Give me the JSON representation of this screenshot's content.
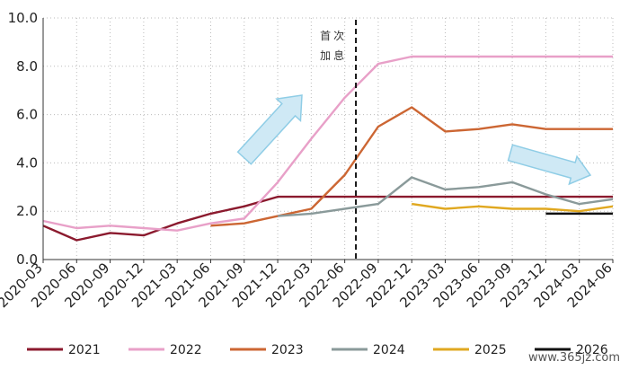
{
  "chart_data": {
    "type": "line",
    "categories": [
      "2020-03",
      "2020-06",
      "2020-09",
      "2020-12",
      "2021-03",
      "2021-06",
      "2021-09",
      "2021-12",
      "2022-03",
      "2022-06",
      "2022-09",
      "2022-12",
      "2023-03",
      "2023-06",
      "2023-09",
      "2023-12",
      "2024-03",
      "2024-06"
    ],
    "ylim": [
      0,
      10
    ],
    "yticks": [
      "0.0",
      "2.0",
      "4.0",
      "6.0",
      "8.0",
      "10.0"
    ],
    "grid": true,
    "legend_position": "bottom",
    "annotation": {
      "line1": "首次",
      "line2": "加息",
      "at": "2022-07"
    },
    "series": [
      {
        "name": "2021",
        "color": "#8B1A2E",
        "values": [
          1.4,
          0.8,
          1.1,
          1.0,
          1.5,
          1.9,
          2.2,
          2.6,
          2.6,
          2.6,
          2.6,
          2.6,
          2.6,
          2.6,
          2.6,
          2.6,
          2.6,
          2.6
        ]
      },
      {
        "name": "2022",
        "color": "#E8A0C8",
        "values": [
          1.6,
          1.3,
          1.4,
          1.3,
          1.2,
          1.5,
          1.7,
          3.2,
          5.0,
          6.7,
          8.1,
          8.4,
          8.4,
          8.4,
          8.4,
          8.4,
          8.4,
          8.4
        ]
      },
      {
        "name": "2023",
        "color": "#CC6633",
        "values": [
          null,
          null,
          null,
          null,
          null,
          1.4,
          1.5,
          1.8,
          2.1,
          3.5,
          5.5,
          6.3,
          5.3,
          5.4,
          5.6,
          5.4,
          5.4,
          5.4
        ]
      },
      {
        "name": "2024",
        "color": "#8A9A9A",
        "values": [
          null,
          null,
          null,
          null,
          null,
          null,
          null,
          1.8,
          1.9,
          2.1,
          2.3,
          3.4,
          2.9,
          3.0,
          3.2,
          2.7,
          2.3,
          2.5
        ]
      },
      {
        "name": "2025",
        "color": "#E0A820",
        "values": [
          null,
          null,
          null,
          null,
          null,
          null,
          null,
          null,
          null,
          null,
          null,
          2.3,
          2.1,
          2.2,
          2.1,
          2.1,
          2.0,
          2.2
        ]
      },
      {
        "name": "2026",
        "color": "#111111",
        "values": [
          null,
          null,
          null,
          null,
          null,
          null,
          null,
          null,
          null,
          null,
          null,
          null,
          null,
          null,
          null,
          1.9,
          1.9,
          1.9
        ]
      }
    ]
  },
  "watermark": "www.365jz.com"
}
